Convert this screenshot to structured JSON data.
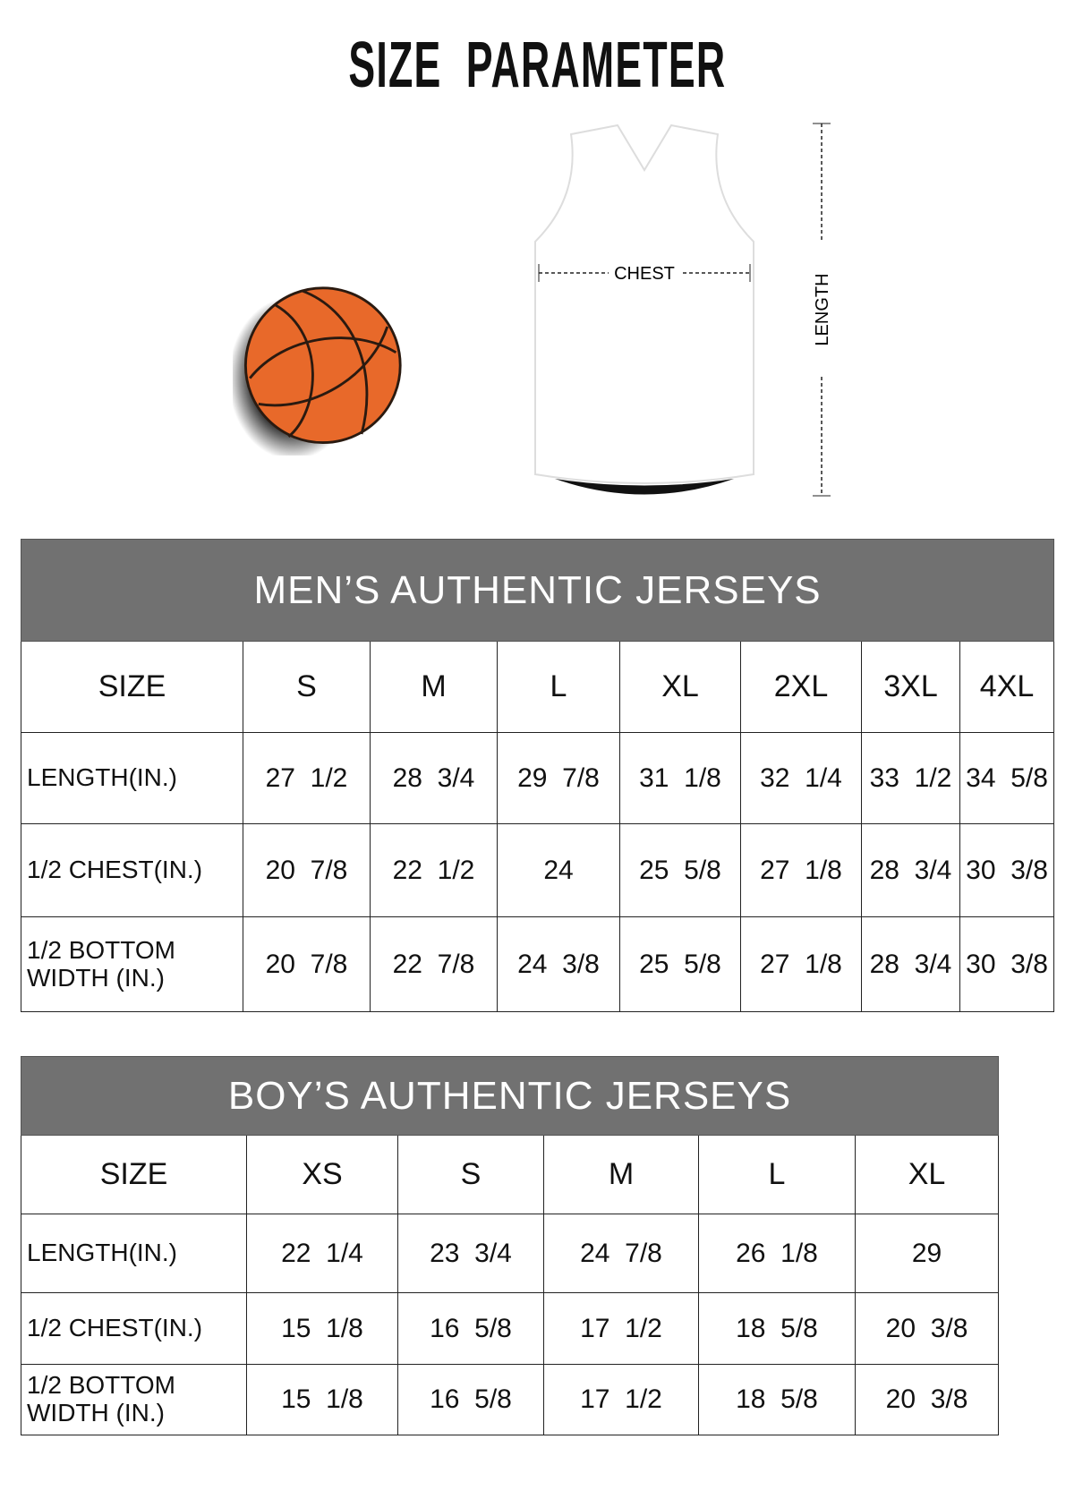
{
  "title": "SIZE  PARAMETER",
  "diagram": {
    "chest_label": "CHEST",
    "length_label": "LENGTH"
  },
  "colors": {
    "header_bg": "#717171",
    "ball": "#e8692a"
  },
  "mens": {
    "heading": "MEN’S AUTHENTIC JERSEYS",
    "size_label": "SIZE",
    "sizes": [
      "S",
      "M",
      "L",
      "XL",
      "2XL",
      "3XL",
      "4XL"
    ],
    "rows": [
      {
        "label": "LENGTH(IN.)",
        "values": [
          "27  1/2",
          "28  3/4",
          "29  7/8",
          "31  1/8",
          "32  1/4",
          "33  1/2",
          "34  5/8"
        ]
      },
      {
        "label": "1/2 CHEST(IN.)",
        "values": [
          "20  7/8",
          "22  1/2",
          "24",
          "25  5/8",
          "27  1/8",
          "28  3/4",
          "30  3/8"
        ]
      },
      {
        "label": "1/2 BOTTOM WIDTH  (IN.)",
        "values": [
          "20  7/8",
          "22  7/8",
          "24  3/8",
          "25  5/8",
          "27  1/8",
          "28  3/4",
          "30  3/8"
        ]
      }
    ]
  },
  "boys": {
    "heading": "BOY’S AUTHENTIC JERSEYS",
    "size_label": "SIZE",
    "sizes": [
      "XS",
      "S",
      "M",
      "L",
      "XL"
    ],
    "rows": [
      {
        "label": "LENGTH(IN.)",
        "values": [
          "22  1/4",
          "23  3/4",
          "24  7/8",
          "26  1/8",
          "29"
        ]
      },
      {
        "label": "1/2 CHEST(IN.)",
        "values": [
          "15  1/8",
          "16  5/8",
          "17  1/2",
          "18  5/8",
          "20  3/8"
        ]
      },
      {
        "label": "1/2 BOTTOM WIDTH  (IN.)",
        "values": [
          "15  1/8",
          "16  5/8",
          "17  1/2",
          "18  5/8",
          "20  3/8"
        ]
      }
    ]
  }
}
